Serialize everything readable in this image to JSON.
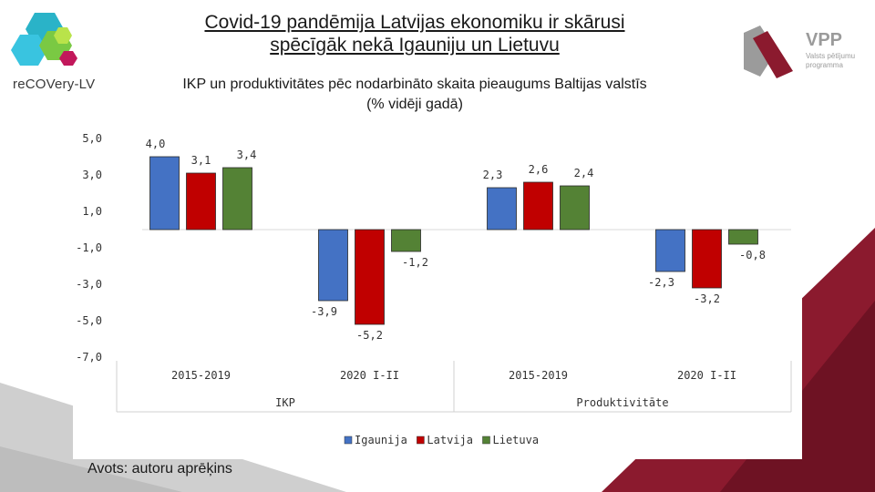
{
  "header": {
    "title_line1": "Covid-19 pandēmija Latvijas ekonomiku ir skārusi",
    "title_line2": "spēcīgāk nekā Igauniju un Lietuvu",
    "subtitle_line1": "IKP un produktivitātes pēc nodarbināto skaita pieaugums Baltijas valstīs",
    "subtitle_line2": "(% vidēji gadā)"
  },
  "logos": {
    "left_text": "reCOVery-LV",
    "right_text_main": "VPP",
    "right_text_sub1": "Valsts pētījumu",
    "right_text_sub2": "programma"
  },
  "footer": {
    "source": "Avots: autoru aprēķins"
  },
  "colors": {
    "igaunija": "#4472c4",
    "latvija": "#c00000",
    "lietuva": "#548235",
    "accent_red": "#8b1a2e",
    "grey_deco": "#c8c8c8"
  },
  "chart_data": {
    "type": "bar",
    "title": "",
    "ylim": [
      -7,
      5
    ],
    "yticks": [
      "5,0",
      "3,0",
      "1,0",
      "-1,0",
      "-3,0",
      "-5,0",
      "-7,0"
    ],
    "ytick_values": [
      5,
      3,
      1,
      -1,
      -3,
      -5,
      -7
    ],
    "groups": [
      {
        "name": "IKP",
        "categories": [
          "2015-2019",
          "2020 I-II"
        ]
      },
      {
        "name": "Produktivitāte",
        "categories": [
          "2015-2019",
          "2020 I-II"
        ]
      }
    ],
    "categories": [
      "2015-2019",
      "2020 I-II",
      "2015-2019",
      "2020 I-II"
    ],
    "series": [
      {
        "name": "Igaunija",
        "values": [
          4.0,
          -3.9,
          2.3,
          -2.3
        ],
        "labels": [
          "4,0",
          "-3,9",
          "2,3",
          "-2,3"
        ]
      },
      {
        "name": "Latvija",
        "values": [
          3.1,
          -5.2,
          2.6,
          -3.2
        ],
        "labels": [
          "3,1",
          "-5,2",
          "2,6",
          "-3,2"
        ]
      },
      {
        "name": "Lietuva",
        "values": [
          3.4,
          -1.2,
          2.4,
          -0.8
        ],
        "labels": [
          "3,4",
          "-1,2",
          "2,4",
          "-0,8"
        ]
      }
    ],
    "legend": [
      "Igaunija",
      "Latvija",
      "Lietuva"
    ],
    "legend_position": "bottom",
    "grid": false
  }
}
